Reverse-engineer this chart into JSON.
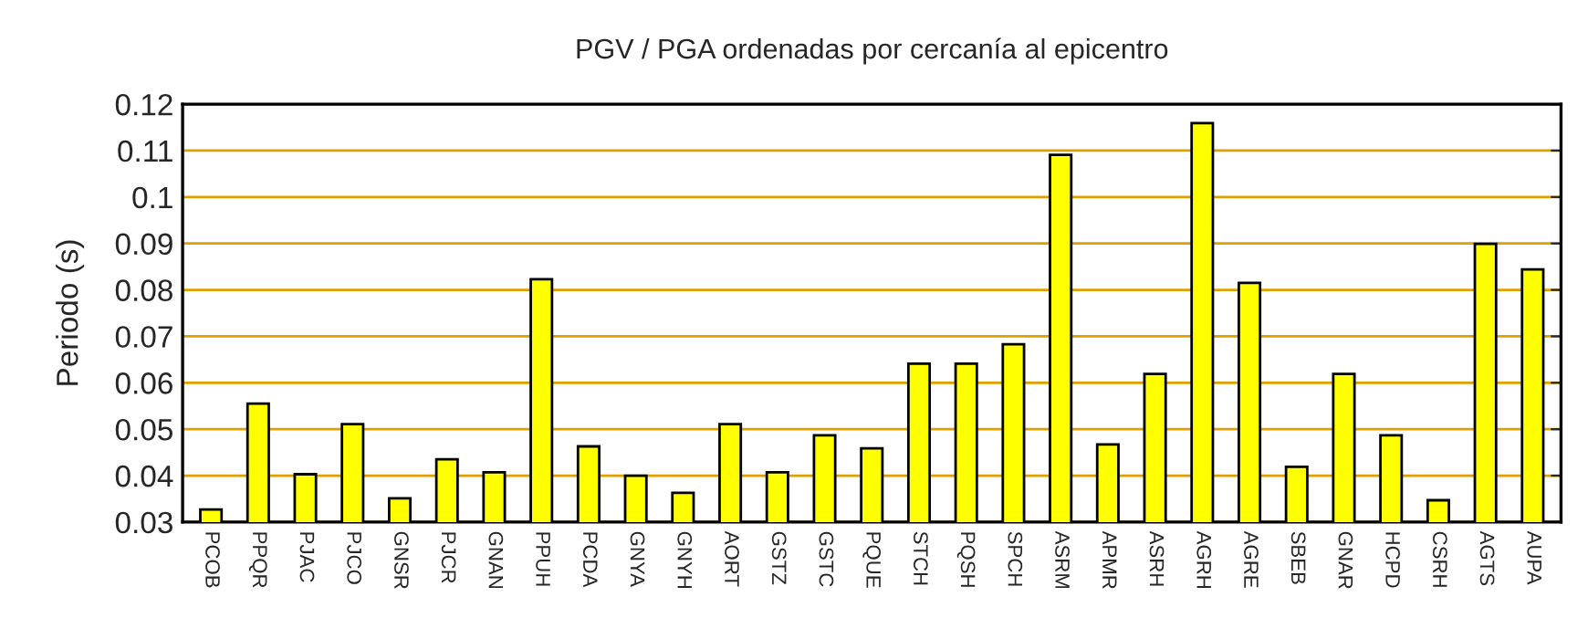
{
  "chart_data": {
    "type": "bar",
    "title": "PGV / PGA ordenadas por cercanía al epicentro",
    "ylabel": "Periodo (s)",
    "categories": [
      "PCOB",
      "PPQR",
      "PJAC",
      "PJCO",
      "GNSR",
      "PJCR",
      "GNAN",
      "PPUH",
      "PCDA",
      "GNYA",
      "GNYH",
      "AORT",
      "GSTZ",
      "GSTC",
      "PQUE",
      "STCH",
      "PQSH",
      "SPCH",
      "ASRM",
      "APMR",
      "ASRH",
      "AGRH",
      "AGRE",
      "SBEB",
      "GNAR",
      "HCPD",
      "CSRH",
      "AGTS",
      "AUPA"
    ],
    "values": [
      0.0327,
      0.0555,
      0.0403,
      0.0511,
      0.0351,
      0.0435,
      0.0407,
      0.0823,
      0.0463,
      0.04,
      0.0363,
      0.0511,
      0.0407,
      0.0487,
      0.0459,
      0.0641,
      0.0641,
      0.0683,
      0.1091,
      0.0467,
      0.0619,
      0.1159,
      0.0815,
      0.0419,
      0.0619,
      0.0487,
      0.0347,
      0.0899,
      0.0844
    ],
    "color": "#ffff00",
    "ylim": [
      0.03,
      0.12
    ],
    "yticks": [
      0.03,
      0.04,
      0.05,
      0.06,
      0.07,
      0.08,
      0.09,
      {
        "value": 0.1,
        "label": "0.1"
      },
      0.11,
      0.12
    ],
    "grid": "y",
    "legend": false
  }
}
